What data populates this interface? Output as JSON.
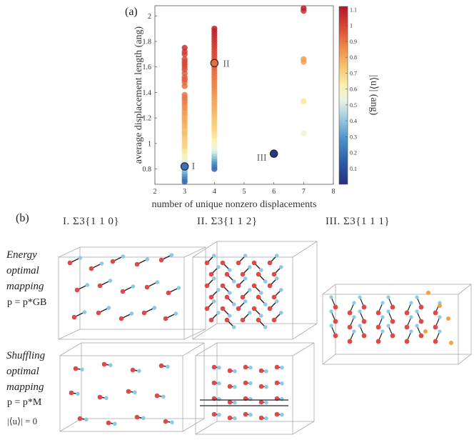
{
  "panel_a": {
    "label": "(a)",
    "chart_data": {
      "type": "scatter",
      "xlabel": "number of unique nonzero displacements",
      "ylabel": "average displacement length (ang)",
      "xlim": [
        2,
        8
      ],
      "ylim": [
        0.68,
        2.08
      ],
      "xticks": [
        "2",
        "3",
        "4",
        "5",
        "6",
        "7",
        "8"
      ],
      "yticks": [
        "0.8",
        "1",
        "1.2",
        "1.4",
        "1.6",
        "1.8",
        "2"
      ],
      "colorbar": {
        "label": "|⟨u⟩| (ang)",
        "ticks": [
          "0.1",
          "0.2",
          "0.3",
          "0.4",
          "0.5",
          "0.6",
          "0.7",
          "0.8",
          "0.9",
          "1",
          "1.1"
        ],
        "range": [
          0,
          1.12
        ]
      },
      "series": [
        {
          "name": "x=3",
          "x": 3,
          "y": [
            0.7,
            0.72,
            0.74,
            0.76,
            0.78,
            0.8,
            0.82,
            0.84,
            0.86,
            0.88,
            0.9,
            0.92,
            0.94,
            0.96,
            0.98,
            1.0,
            1.02,
            1.04,
            1.06,
            1.08,
            1.1,
            1.12,
            1.14,
            1.16,
            1.18,
            1.2,
            1.22,
            1.24,
            1.26,
            1.28,
            1.3,
            1.32,
            1.34,
            1.36,
            1.38,
            1.45,
            1.48,
            1.5,
            1.52,
            1.55,
            1.58,
            1.6,
            1.62,
            1.64,
            1.66,
            1.7,
            1.72,
            1.75
          ],
          "c": [
            0.15,
            0.2,
            0.25,
            0.3,
            0.35,
            0.4,
            0.45,
            0.5,
            0.5,
            0.55,
            0.6,
            0.6,
            0.65,
            0.65,
            0.7,
            0.7,
            0.7,
            0.72,
            0.72,
            0.75,
            0.75,
            0.75,
            0.78,
            0.78,
            0.8,
            0.8,
            0.8,
            0.82,
            0.82,
            0.85,
            0.85,
            0.88,
            0.88,
            0.9,
            0.9,
            0.92,
            0.92,
            0.95,
            0.95,
            0.95,
            0.98,
            0.98,
            1.0,
            1.0,
            1.0,
            1.02,
            1.02,
            1.05
          ]
        },
        {
          "name": "x=4",
          "x": 4,
          "y": [
            0.8,
            0.82,
            0.84,
            0.86,
            0.88,
            0.9,
            0.92,
            0.94,
            0.96,
            0.98,
            1.0,
            1.02,
            1.04,
            1.06,
            1.08,
            1.1,
            1.12,
            1.14,
            1.16,
            1.18,
            1.2,
            1.22,
            1.24,
            1.26,
            1.28,
            1.3,
            1.32,
            1.34,
            1.36,
            1.38,
            1.4,
            1.42,
            1.44,
            1.46,
            1.48,
            1.5,
            1.52,
            1.54,
            1.56,
            1.58,
            1.6,
            1.62,
            1.64,
            1.66,
            1.68,
            1.7,
            1.72,
            1.74,
            1.76,
            1.78,
            1.8,
            1.82,
            1.84,
            1.86,
            1.88,
            1.9
          ],
          "c": [
            0.15,
            0.2,
            0.25,
            0.3,
            0.35,
            0.4,
            0.45,
            0.5,
            0.52,
            0.55,
            0.58,
            0.6,
            0.62,
            0.65,
            0.66,
            0.68,
            0.7,
            0.7,
            0.72,
            0.72,
            0.74,
            0.75,
            0.76,
            0.77,
            0.78,
            0.79,
            0.8,
            0.8,
            0.82,
            0.82,
            0.84,
            0.85,
            0.86,
            0.87,
            0.88,
            0.88,
            0.9,
            0.9,
            0.92,
            0.92,
            0.94,
            0.95,
            0.96,
            0.97,
            0.98,
            0.99,
            1.0,
            1.0,
            1.02,
            1.03,
            1.04,
            1.05,
            1.06,
            1.07,
            1.08,
            1.1
          ]
        },
        {
          "name": "x=6",
          "x": 6,
          "y": [
            0.92
          ],
          "c": [
            0.02
          ]
        },
        {
          "name": "x=7",
          "x": 7,
          "y": [
            1.08,
            1.33,
            1.64,
            1.66,
            2.04,
            2.06
          ],
          "c": [
            0.55,
            0.65,
            0.8,
            0.82,
            1.05,
            1.1
          ]
        }
      ],
      "annotations": [
        {
          "text": "I",
          "x": 3,
          "y": 0.82
        },
        {
          "text": "II",
          "x": 4,
          "y": 1.63
        },
        {
          "text": "III",
          "x": 6,
          "y": 0.92
        }
      ]
    }
  },
  "panel_b": {
    "label": "(b)",
    "columns": [
      "I.  Σ3{1 1 0}",
      "II.  Σ3{1 1 2}",
      "III. Σ3{1 1 1}"
    ],
    "row1": {
      "line1": "Energy",
      "line2": "optimal",
      "line3": "mapping",
      "eq": "p = p*GB"
    },
    "row2": {
      "line1": "Shuffling",
      "line2": "optimal",
      "line3": "mapping",
      "eq": "p = p*M",
      "eq2": "|⟨u⟩| = 0"
    }
  }
}
